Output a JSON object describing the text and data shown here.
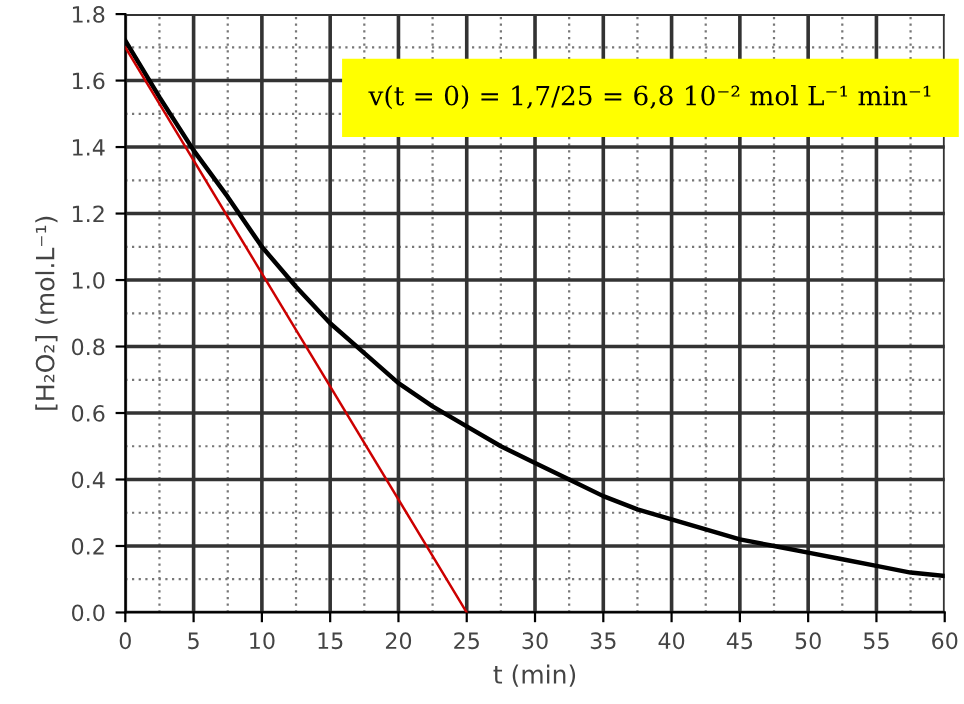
{
  "chart_data": {
    "type": "line",
    "xlabel": "t (min)",
    "ylabel": "[H₂O₂] (mol.L⁻¹)",
    "xlim": [
      0,
      60
    ],
    "ylim": [
      0,
      1.8
    ],
    "xticks": [
      0,
      5,
      10,
      15,
      20,
      25,
      30,
      35,
      40,
      45,
      50,
      55,
      60
    ],
    "yticks": [
      {
        "value": 0,
        "label": "0.0"
      },
      0.2,
      0.4,
      0.6,
      0.8,
      {
        "value": 1,
        "label": "1.0"
      },
      1.2,
      1.4,
      1.6,
      1.8
    ],
    "grid": true,
    "legend": false,
    "marker": "none",
    "line_style": "solid",
    "series": [
      {
        "color": "#000000",
        "x": [
          0,
          2.5,
          5,
          7.5,
          10,
          12.5,
          15,
          17.5,
          20,
          22.5,
          25,
          27.5,
          30,
          32.5,
          35,
          37.5,
          40,
          42.5,
          45,
          47.5,
          50,
          52.5,
          55,
          57.5,
          60
        ],
        "values": [
          1.72,
          1.55,
          1.39,
          1.25,
          1.1,
          0.98,
          0.87,
          0.78,
          0.69,
          0.62,
          0.56,
          0.5,
          0.45,
          0.4,
          0.35,
          0.31,
          0.28,
          0.25,
          0.22,
          0.2,
          0.18,
          0.16,
          0.14,
          0.12,
          0.11
        ]
      },
      {
        "color": "#cc0000",
        "x": [
          0,
          25
        ],
        "values": [
          1.7,
          0
        ]
      }
    ],
    "annotations": [
      "v(t = 0) = 1,7/25 = 6,8 10⁻² mol L⁻¹ min⁻¹"
    ]
  }
}
